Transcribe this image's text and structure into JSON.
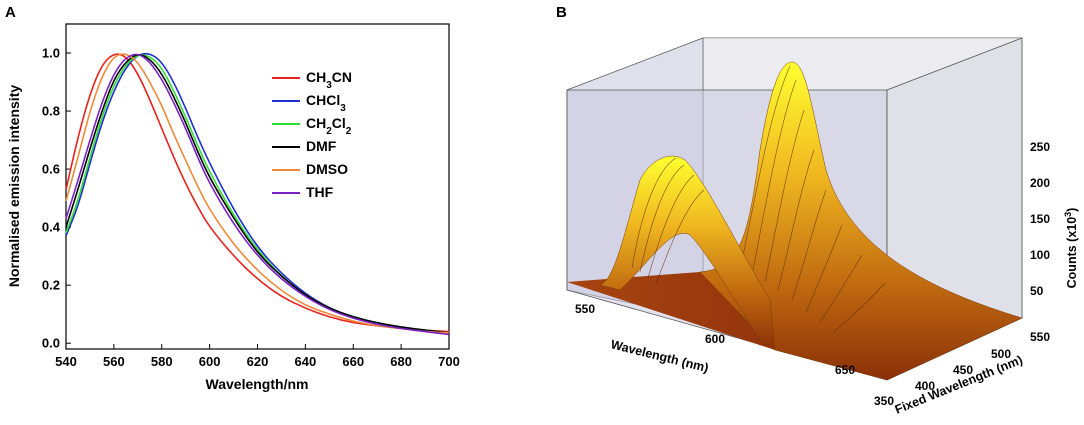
{
  "panels": {
    "a_label": "A",
    "b_label": "B"
  },
  "chart_data": [
    {
      "type": "line",
      "panel": "A",
      "title": "",
      "xlabel": "Wavelength/nm",
      "ylabel": "Normalised emission intensity",
      "xlim": [
        540,
        700
      ],
      "ylim": [
        -0.02,
        1.1
      ],
      "xticks": [
        540,
        560,
        580,
        600,
        620,
        640,
        660,
        680,
        700
      ],
      "yticks": [
        0.0,
        0.2,
        0.4,
        0.6,
        0.8,
        1.0
      ],
      "ytick_labels": [
        "0.0",
        "0.2",
        "0.4",
        "0.6",
        "0.8",
        "1.0"
      ],
      "legend_position": "top-right",
      "x": [
        540,
        545,
        550,
        555,
        560,
        565,
        570,
        575,
        580,
        585,
        590,
        595,
        600,
        610,
        620,
        630,
        640,
        650,
        660,
        670,
        680,
        690,
        700
      ],
      "series": [
        {
          "name": "CH3CN",
          "sub": "3",
          "parts": [
            "CH",
            "3",
            "CN"
          ],
          "color": "#e8231e",
          "values": [
            0.53,
            0.71,
            0.86,
            0.96,
            1.0,
            0.99,
            0.93,
            0.84,
            0.74,
            0.64,
            0.55,
            0.47,
            0.4,
            0.3,
            0.22,
            0.16,
            0.12,
            0.09,
            0.07,
            0.06,
            0.05,
            0.045,
            0.04
          ]
        },
        {
          "name": "CHCl3",
          "parts": [
            "CHCl",
            "3",
            ""
          ],
          "color": "#1f2fcf",
          "values": [
            0.37,
            0.47,
            0.62,
            0.76,
            0.87,
            0.95,
            0.995,
            1.0,
            0.97,
            0.9,
            0.81,
            0.71,
            0.62,
            0.46,
            0.33,
            0.24,
            0.17,
            0.12,
            0.09,
            0.07,
            0.055,
            0.045,
            0.035
          ]
        },
        {
          "name": "CH2Cl2",
          "parts": [
            "CH",
            "2",
            "Cl",
            "2"
          ],
          "color": "#33dd33",
          "values": [
            0.38,
            0.49,
            0.64,
            0.78,
            0.89,
            0.96,
            0.995,
            0.99,
            0.95,
            0.87,
            0.78,
            0.68,
            0.59,
            0.44,
            0.32,
            0.23,
            0.165,
            0.12,
            0.09,
            0.07,
            0.055,
            0.045,
            0.035
          ]
        },
        {
          "name": "DMF",
          "parts": [
            "DMF"
          ],
          "color": "#000000",
          "values": [
            0.4,
            0.53,
            0.67,
            0.8,
            0.91,
            0.97,
            1.0,
            0.98,
            0.93,
            0.85,
            0.76,
            0.66,
            0.57,
            0.43,
            0.31,
            0.23,
            0.165,
            0.12,
            0.09,
            0.07,
            0.055,
            0.045,
            0.035
          ]
        },
        {
          "name": "DMSO",
          "parts": [
            "DMSO"
          ],
          "color": "#f08a3a",
          "values": [
            0.49,
            0.64,
            0.8,
            0.92,
            0.99,
            1.0,
            0.97,
            0.9,
            0.82,
            0.72,
            0.63,
            0.54,
            0.46,
            0.34,
            0.25,
            0.18,
            0.13,
            0.1,
            0.075,
            0.06,
            0.05,
            0.04,
            0.035
          ]
        },
        {
          "name": "THF",
          "parts": [
            "THF"
          ],
          "color": "#7a22c8",
          "values": [
            0.43,
            0.56,
            0.7,
            0.83,
            0.93,
            0.985,
            1.0,
            0.97,
            0.91,
            0.83,
            0.74,
            0.64,
            0.55,
            0.41,
            0.3,
            0.22,
            0.16,
            0.115,
            0.085,
            0.065,
            0.05,
            0.04,
            0.03
          ]
        }
      ]
    },
    {
      "type": "surface3d",
      "panel": "B",
      "xlabel": "Wavelength (nm)",
      "ylabel": "Fixed Wavelength (nm)",
      "zlabel": "Counts (x10",
      "zlabel_sup": "3",
      "zlabel_close": ")",
      "x_ticks": [
        550,
        600,
        650
      ],
      "y_ticks": [
        350,
        400,
        450,
        500,
        550
      ],
      "z_ticks": [
        50,
        100,
        150,
        200,
        250
      ],
      "peaks": [
        {
          "emission_nm": 575,
          "fixed_nm": 350,
          "counts_k": 205
        },
        {
          "emission_nm": 605,
          "fixed_nm": 550,
          "counts_k": 280
        }
      ]
    }
  ]
}
